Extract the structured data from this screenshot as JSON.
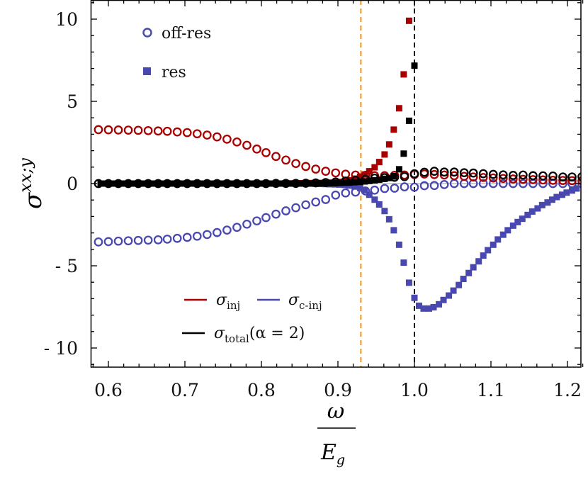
{
  "chart_data": {
    "type": "scatter",
    "title": "",
    "xlabel": {
      "numerator": "ω",
      "denominator": "E",
      "denominator_sub": "g"
    },
    "ylabel": {
      "base": "σ",
      "sup": "xx;y"
    },
    "xlim": [
      0.577,
      1.218
    ],
    "ylim": [
      -11.16,
      11.16
    ],
    "grid": false,
    "x_ticks": [
      0.6,
      0.7,
      0.8,
      0.9,
      1.0,
      1.1,
      1.2
    ],
    "x_tick_labels": [
      "0.6",
      "0.7",
      "0.8",
      "0.9",
      "1.0",
      "1.1",
      "1.2"
    ],
    "y_ticks": [
      10,
      5,
      0,
      -5,
      -10
    ],
    "y_tick_labels": [
      "10",
      "5",
      "0",
      "- 5",
      "- 10"
    ],
    "vertical_lines": [
      {
        "x": 0.93,
        "color": "#f39318",
        "style": "dashed"
      },
      {
        "x": 1.0,
        "color": "#000000",
        "style": "dashed"
      }
    ],
    "marker_legend": {
      "position": "top-left",
      "entries": [
        {
          "label": "off-res",
          "marker": "open-circle",
          "color": "#4848b0"
        },
        {
          "label": "res",
          "marker": "filled-square",
          "color": "#4848b0"
        }
      ]
    },
    "color_legend": {
      "position": "bottom-left",
      "entries": [
        {
          "symbol": "σ",
          "sub": "inj",
          "suffix": "",
          "color": "#a80000"
        },
        {
          "symbol": "σ",
          "sub": "c-inj",
          "suffix": "",
          "color": "#4848b0"
        },
        {
          "symbol": "σ",
          "sub": "total",
          "suffix": "(α = 2)",
          "color": "#000000"
        }
      ]
    },
    "off_res_x": [
      0.587,
      0.6,
      0.613,
      0.626,
      0.639,
      0.652,
      0.665,
      0.677,
      0.69,
      0.703,
      0.716,
      0.729,
      0.742,
      0.755,
      0.768,
      0.781,
      0.794,
      0.806,
      0.819,
      0.832,
      0.845,
      0.858,
      0.871,
      0.884,
      0.897,
      0.91,
      0.923,
      0.936,
      0.948,
      0.961,
      0.974,
      0.987,
      1.0,
      1.013,
      1.026,
      1.039,
      1.052,
      1.065,
      1.077,
      1.09,
      1.103,
      1.116,
      1.129,
      1.142,
      1.155,
      1.168,
      1.181,
      1.194,
      1.206,
      1.219
    ],
    "res_x": [
      0.59,
      0.597,
      0.603,
      0.61,
      0.616,
      0.623,
      0.629,
      0.636,
      0.642,
      0.649,
      0.655,
      0.662,
      0.668,
      0.675,
      0.681,
      0.688,
      0.694,
      0.701,
      0.707,
      0.714,
      0.72,
      0.727,
      0.733,
      0.74,
      0.746,
      0.753,
      0.759,
      0.766,
      0.772,
      0.779,
      0.785,
      0.792,
      0.798,
      0.805,
      0.811,
      0.818,
      0.824,
      0.831,
      0.837,
      0.844,
      0.85,
      0.857,
      0.863,
      0.87,
      0.876,
      0.883,
      0.889,
      0.896,
      0.902,
      0.909,
      0.915,
      0.922,
      0.929,
      0.935,
      0.941,
      0.948,
      0.954,
      0.961,
      0.967,
      0.973,
      0.98,
      0.986,
      0.993,
      1.0,
      1.006,
      1.012,
      1.019,
      1.025,
      1.032,
      1.038,
      1.045,
      1.051,
      1.058,
      1.064,
      1.071,
      1.077,
      1.084,
      1.09,
      1.096,
      1.103,
      1.109,
      1.116,
      1.122,
      1.129,
      1.135,
      1.141,
      1.148,
      1.154,
      1.161,
      1.167,
      1.174,
      1.18,
      1.186,
      1.193,
      1.199,
      1.206,
      1.212
    ],
    "series": [
      {
        "component": "inj",
        "kind": "off-res",
        "color": "#a80000",
        "values": [
          3.28,
          3.27,
          3.26,
          3.25,
          3.24,
          3.22,
          3.2,
          3.18,
          3.14,
          3.1,
          3.03,
          2.95,
          2.84,
          2.7,
          2.53,
          2.33,
          2.1,
          1.88,
          1.65,
          1.43,
          1.22,
          1.04,
          0.88,
          0.75,
          0.65,
          0.57,
          0.52,
          0.5,
          0.48,
          0.48,
          0.5,
          0.52,
          0.55,
          0.58,
          0.55,
          0.52,
          0.48,
          0.44,
          0.4,
          0.37,
          0.34,
          0.31,
          0.28,
          0.26,
          0.24,
          0.22,
          0.2,
          0.19,
          0.18,
          0.17
        ]
      },
      {
        "component": "c-inj",
        "kind": "off-res",
        "color": "#4848b0",
        "values": [
          -3.55,
          -3.53,
          -3.5,
          -3.48,
          -3.46,
          -3.44,
          -3.42,
          -3.38,
          -3.33,
          -3.27,
          -3.2,
          -3.1,
          -2.98,
          -2.83,
          -2.66,
          -2.47,
          -2.27,
          -2.07,
          -1.86,
          -1.66,
          -1.47,
          -1.29,
          -1.12,
          -0.97,
          -0.7,
          -0.57,
          -0.52,
          -0.45,
          -0.4,
          -0.3,
          -0.28,
          -0.2,
          -0.22,
          -0.13,
          -0.12,
          -0.06,
          0,
          0,
          0,
          0,
          0,
          0,
          0,
          0,
          0,
          0,
          0,
          0,
          0,
          0
        ]
      },
      {
        "component": "total",
        "kind": "off-res",
        "color": "#000000",
        "values": [
          0,
          0,
          0,
          0,
          0,
          0,
          0,
          0,
          0,
          0,
          0,
          0,
          0,
          0,
          0,
          0,
          0,
          0,
          0.01,
          0.01,
          0.01,
          0.02,
          0.04,
          0.06,
          0.1,
          0.15,
          0.2,
          0.27,
          0.33,
          0.36,
          0.38,
          0.42,
          0.6,
          0.69,
          0.75,
          0.7,
          0.7,
          0.66,
          0.64,
          0.6,
          0.56,
          0.53,
          0.5,
          0.52,
          0.48,
          0.47,
          0.46,
          0.4,
          0.4,
          0.42
        ]
      },
      {
        "component": "inj",
        "kind": "res",
        "color": "#a80000",
        "values": [
          0,
          0,
          0,
          0,
          0,
          0,
          0,
          0,
          0,
          0,
          0,
          0,
          0,
          0,
          0,
          0,
          0,
          0,
          0,
          0,
          0,
          0,
          0,
          0,
          0,
          0,
          0,
          0,
          0,
          0,
          0,
          0,
          0,
          0,
          0,
          0,
          0,
          0.01,
          0.01,
          0.01,
          0.02,
          0.02,
          0.03,
          0.03,
          0.04,
          0.05,
          0.06,
          0.08,
          0.1,
          0.14,
          0.2,
          0.3,
          0.42,
          0.55,
          0.75,
          0.99,
          1.31,
          1.77,
          2.38,
          3.28,
          4.58,
          6.64,
          9.9
        ]
      },
      {
        "component": "total",
        "kind": "res",
        "color": "#000000",
        "values": [
          0,
          0,
          0,
          0,
          0,
          0,
          0,
          0,
          0,
          0,
          0,
          0,
          0,
          0,
          0,
          0,
          0,
          0,
          0,
          0,
          0,
          0,
          0,
          0,
          0,
          0,
          0,
          0,
          0,
          0,
          0,
          0,
          0,
          0,
          0,
          0,
          0,
          0,
          0,
          0,
          0,
          0,
          0,
          0.01,
          0.01,
          0.02,
          0.02,
          0.03,
          0.04,
          0.05,
          0.06,
          0.08,
          0.1,
          0.13,
          0.16,
          0.2,
          0.24,
          0.29,
          0.34,
          0.45,
          0.87,
          1.82,
          3.82,
          7.17
        ]
      },
      {
        "component": "c-inj",
        "kind": "res",
        "color": "#4848b0",
        "values": [
          0,
          0,
          0,
          0,
          0,
          0,
          0,
          0,
          0,
          0,
          0,
          0,
          0,
          0,
          0,
          0,
          0,
          0,
          0,
          0,
          0,
          0,
          0,
          0,
          0,
          0,
          0,
          0,
          0,
          0,
          0,
          0,
          0,
          0,
          0,
          0,
          0,
          0,
          0,
          0,
          0,
          0,
          0,
          -0.01,
          -0.02,
          -0.03,
          -0.04,
          -0.05,
          -0.06,
          -0.08,
          -0.12,
          -0.18,
          -0.27,
          -0.4,
          -0.68,
          -0.98,
          -1.27,
          -1.67,
          -2.17,
          -2.84,
          -3.72,
          -4.81,
          -6.03,
          -6.95,
          -7.43,
          -7.6,
          -7.6,
          -7.52,
          -7.34,
          -7.08,
          -6.81,
          -6.51,
          -6.17,
          -5.8,
          -5.44,
          -5.09,
          -4.73,
          -4.38,
          -4.05,
          -3.72,
          -3.4,
          -3.11,
          -2.84,
          -2.56,
          -2.34,
          -2.14,
          -1.91,
          -1.7,
          -1.51,
          -1.31,
          -1.15,
          -0.98,
          -0.82,
          -0.68,
          -0.55,
          -0.42,
          -0.3
        ]
      }
    ]
  }
}
